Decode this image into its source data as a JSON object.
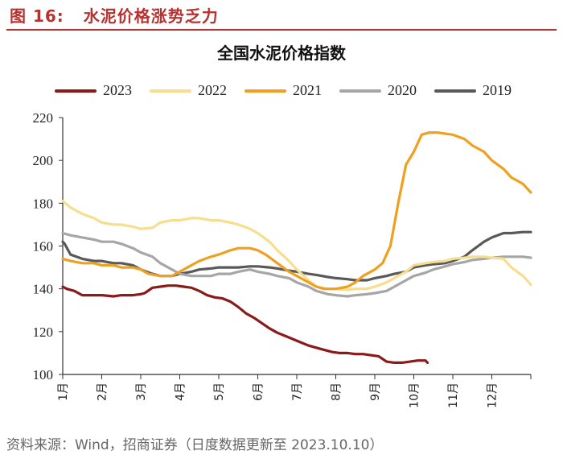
{
  "figure": {
    "label": "图 16:",
    "title": "水泥价格涨势乏力"
  },
  "source_note": "资料来源：Wind，招商证券（日度数据更新至 2023.10.10）",
  "chart_data": {
    "type": "line",
    "title": "全国水泥价格指数",
    "xlabel": "",
    "ylabel": "",
    "ylim": [
      100,
      220
    ],
    "yticks": [
      100,
      120,
      140,
      160,
      180,
      200,
      220
    ],
    "month_labels": [
      "1月",
      "2月",
      "3月",
      "4月",
      "5月",
      "6月",
      "7月",
      "8月",
      "9月",
      "10月",
      "11月",
      "12月"
    ],
    "x_unit": "month (1 = start of Jan, 13 = end of Dec)",
    "series": [
      {
        "name": "2023",
        "color": "#8b1a1a",
        "x": [
          1.0,
          1.1,
          1.3,
          1.5,
          1.7,
          2.0,
          2.3,
          2.5,
          2.8,
          3.0,
          3.1,
          3.3,
          3.5,
          3.7,
          3.9,
          4.1,
          4.3,
          4.5,
          4.7,
          4.9,
          5.1,
          5.3,
          5.5,
          5.7,
          5.9,
          6.1,
          6.3,
          6.5,
          6.7,
          6.9,
          7.1,
          7.3,
          7.5,
          7.7,
          7.9,
          8.1,
          8.3,
          8.5,
          8.7,
          8.9,
          9.1,
          9.3,
          9.5,
          9.7,
          9.9,
          10.1,
          10.3,
          10.35
        ],
        "values": [
          141,
          140,
          139,
          137,
          137,
          137,
          136.5,
          137,
          137,
          137.5,
          138,
          140.5,
          141,
          141.5,
          141.5,
          141,
          140.5,
          139,
          137,
          136,
          135.5,
          134,
          131.5,
          128.5,
          126.5,
          124,
          121.5,
          119.5,
          118,
          116.5,
          115,
          113.5,
          112.5,
          111.5,
          110.5,
          110,
          110,
          109.5,
          109.5,
          109,
          108.5,
          106,
          105.5,
          105.5,
          106,
          106.5,
          106.5,
          105.5
        ]
      },
      {
        "name": "2022",
        "color": "#f7dd8e",
        "x": [
          1.0,
          1.2,
          1.5,
          1.8,
          2.0,
          2.3,
          2.5,
          2.8,
          3.0,
          3.3,
          3.5,
          3.8,
          4.0,
          4.3,
          4.5,
          4.8,
          5.0,
          5.3,
          5.5,
          5.8,
          6.0,
          6.3,
          6.5,
          6.8,
          7.0,
          7.3,
          7.5,
          7.8,
          8.0,
          8.3,
          8.5,
          8.8,
          9.0,
          9.3,
          9.5,
          9.8,
          10.0,
          10.3,
          10.5,
          10.8,
          11.0,
          11.3,
          11.5,
          11.8,
          12.0,
          12.3,
          12.5,
          12.8,
          13.0
        ],
        "values": [
          181,
          178,
          175,
          173,
          171,
          170,
          170,
          169,
          168,
          168.5,
          171,
          172,
          172,
          173,
          173,
          172,
          172,
          171,
          170,
          168,
          166,
          162,
          158,
          153,
          149,
          144,
          141,
          140,
          140,
          139.5,
          140,
          140,
          141,
          143,
          145,
          148,
          151,
          152,
          152.5,
          153,
          154,
          154.5,
          155,
          155,
          154.5,
          154,
          150,
          146,
          142
        ]
      },
      {
        "name": "2021",
        "color": "#f0a020",
        "x": [
          1.0,
          1.2,
          1.5,
          1.8,
          2.0,
          2.3,
          2.5,
          2.8,
          3.0,
          3.2,
          3.5,
          3.8,
          4.0,
          4.3,
          4.5,
          4.8,
          5.0,
          5.3,
          5.5,
          5.8,
          6.0,
          6.2,
          6.5,
          6.8,
          7.0,
          7.2,
          7.5,
          7.7,
          8.0,
          8.3,
          8.5,
          8.7,
          9.0,
          9.2,
          9.4,
          9.6,
          9.8,
          10.0,
          10.2,
          10.4,
          10.6,
          10.8,
          11.0,
          11.3,
          11.5,
          11.8,
          12.0,
          12.3,
          12.5,
          12.8,
          13.0
        ],
        "values": [
          154,
          153,
          152,
          152,
          151,
          151,
          150,
          150,
          149,
          147,
          146,
          146,
          148,
          151,
          153,
          155,
          156,
          158,
          159,
          159,
          158,
          156,
          152,
          148,
          146,
          144,
          141,
          140,
          140,
          141,
          143,
          146,
          149,
          152,
          160,
          180,
          198,
          204,
          212,
          213,
          213,
          212.5,
          212,
          210,
          207,
          204,
          200,
          196,
          192,
          189,
          185
        ]
      },
      {
        "name": "2020",
        "color": "#a6a6a6",
        "x": [
          1.0,
          1.2,
          1.5,
          1.8,
          2.0,
          2.3,
          2.5,
          2.8,
          3.0,
          3.3,
          3.5,
          3.8,
          4.0,
          4.3,
          4.5,
          4.8,
          5.0,
          5.3,
          5.5,
          5.8,
          6.0,
          6.3,
          6.5,
          6.8,
          7.0,
          7.3,
          7.5,
          7.8,
          8.0,
          8.3,
          8.5,
          8.8,
          9.0,
          9.3,
          9.5,
          9.8,
          10.0,
          10.3,
          10.5,
          10.8,
          11.0,
          11.3,
          11.5,
          11.8,
          12.0,
          12.3,
          12.5,
          12.8,
          13.0
        ],
        "values": [
          166,
          165,
          164,
          163,
          162,
          162,
          161,
          159,
          157,
          155,
          152,
          149,
          147,
          146,
          146,
          146,
          147,
          147,
          148,
          149,
          148,
          147,
          146,
          145,
          143,
          141,
          139,
          137.5,
          137,
          136.5,
          137,
          137.5,
          138,
          139,
          141,
          144,
          146,
          147.5,
          149,
          150.5,
          151.5,
          152.5,
          153.5,
          154,
          154.5,
          155,
          155,
          155,
          154.5
        ]
      },
      {
        "name": "2019",
        "color": "#595959",
        "x": [
          1.0,
          1.05,
          1.2,
          1.5,
          1.8,
          2.0,
          2.3,
          2.5,
          2.8,
          3.0,
          3.3,
          3.5,
          3.8,
          4.0,
          4.3,
          4.5,
          4.8,
          5.0,
          5.3,
          5.5,
          5.8,
          6.0,
          6.3,
          6.5,
          6.8,
          7.0,
          7.3,
          7.5,
          7.8,
          8.0,
          8.3,
          8.5,
          8.8,
          9.0,
          9.3,
          9.5,
          9.8,
          10.0,
          10.3,
          10.5,
          10.8,
          11.0,
          11.3,
          11.5,
          11.8,
          12.0,
          12.3,
          12.5,
          12.8,
          13.0
        ],
        "values": [
          162,
          161,
          156,
          154,
          153,
          153,
          152,
          152,
          151,
          149,
          147,
          146,
          146,
          147,
          148,
          149,
          149.5,
          150,
          150,
          150,
          150.5,
          150.5,
          150,
          149.5,
          148.5,
          148,
          147,
          146.5,
          145.5,
          145,
          144.5,
          144,
          144,
          145,
          146,
          147,
          148,
          150,
          151,
          151.5,
          152,
          153,
          155,
          158,
          162,
          164,
          166,
          166,
          166.5,
          166.5
        ]
      }
    ]
  }
}
